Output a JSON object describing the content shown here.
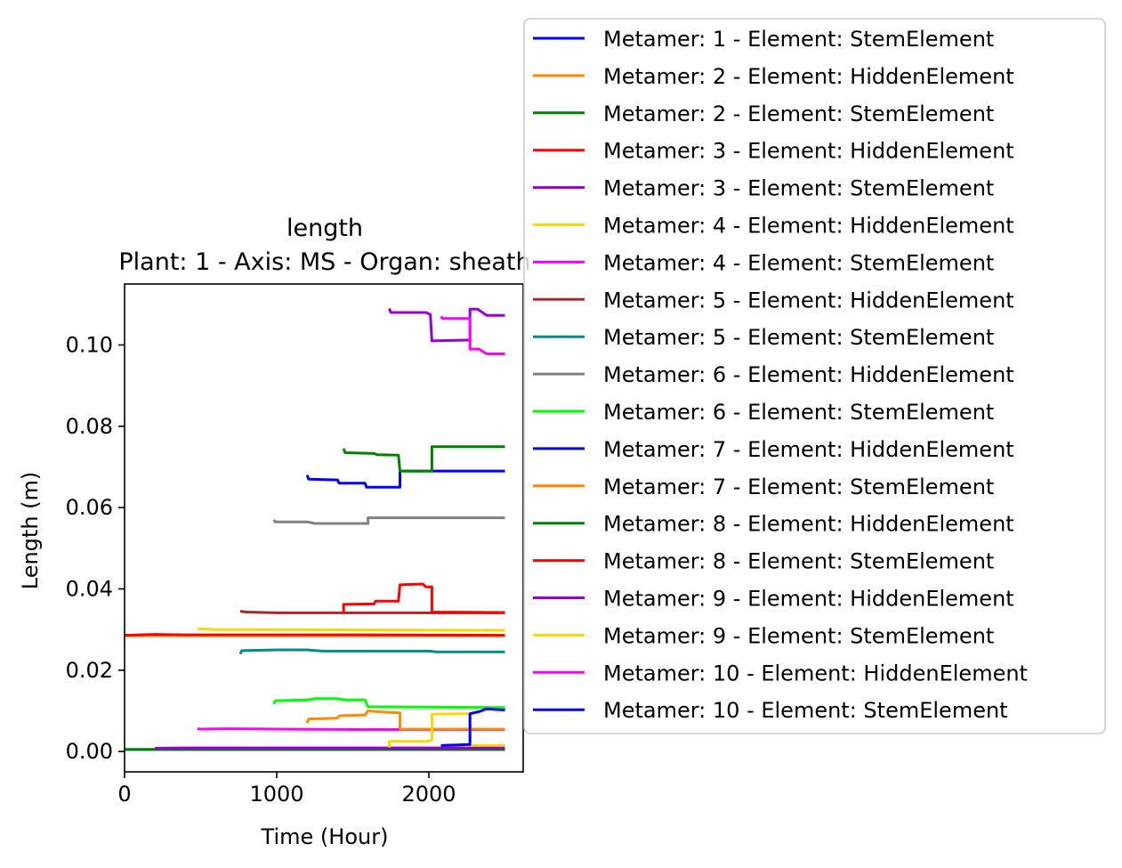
{
  "chart_data": {
    "type": "line",
    "title": "length",
    "subtitle": "Plant: 1 - Axis: MS - Organ: sheath",
    "xlabel": "Time (Hour)",
    "ylabel": "Length (m)",
    "xlim": [
      0,
      2620
    ],
    "ylim": [
      -0.005,
      0.115
    ],
    "xticks": [
      0,
      1000,
      2000
    ],
    "yticks": [
      0.0,
      0.02,
      0.04,
      0.06,
      0.08,
      0.1
    ],
    "ytick_labels": [
      "0.00",
      "0.02",
      "0.04",
      "0.06",
      "0.08",
      "0.10"
    ],
    "xtick_labels": [
      "0",
      "1000",
      "2000"
    ],
    "grid": false,
    "legend_position": "right-outside-top",
    "series": [
      {
        "name": "Metamer: 1 - Element: StemElement",
        "color": "#0000ff",
        "points": [
          [
            0,
            0.0005
          ],
          [
            2500,
            0.0005
          ]
        ]
      },
      {
        "name": "Metamer: 2 - Element: HiddenElement",
        "color": "#ff8c00",
        "points": [
          [
            0,
            0.0285
          ],
          [
            2500,
            0.0285
          ]
        ]
      },
      {
        "name": "Metamer: 2 - Element: StemElement",
        "color": "#008000",
        "points": [
          [
            0,
            0.0005
          ],
          [
            2500,
            0.0005
          ]
        ]
      },
      {
        "name": "Metamer: 3 - Element: HiddenElement",
        "color": "#ff0000",
        "points": [
          [
            0,
            0.0286
          ],
          [
            200,
            0.0288
          ],
          [
            400,
            0.0287
          ],
          [
            800,
            0.0287
          ],
          [
            1600,
            0.0287
          ],
          [
            2500,
            0.0286
          ]
        ]
      },
      {
        "name": "Metamer: 3 - Element: StemElement",
        "color": "#9400d3",
        "points": [
          [
            200,
            0.0008
          ],
          [
            400,
            0.0009
          ],
          [
            1000,
            0.0009
          ],
          [
            2500,
            0.0009
          ]
        ]
      },
      {
        "name": "Metamer: 4 - Element: HiddenElement",
        "color": "#ffd700",
        "points": [
          [
            480,
            0.0302
          ],
          [
            600,
            0.03
          ],
          [
            1000,
            0.03
          ],
          [
            1600,
            0.0299
          ],
          [
            2500,
            0.0298
          ]
        ]
      },
      {
        "name": "Metamer: 4 - Element: StemElement",
        "color": "#ff00ff",
        "points": [
          [
            480,
            0.0056
          ],
          [
            500,
            0.0055
          ],
          [
            700,
            0.0056
          ],
          [
            1000,
            0.0055
          ],
          [
            1600,
            0.0054
          ],
          [
            2500,
            0.0054
          ]
        ]
      },
      {
        "name": "Metamer: 5 - Element: HiddenElement",
        "color": "#a52a2a",
        "points": [
          [
            760,
            0.0345
          ],
          [
            800,
            0.0343
          ],
          [
            1000,
            0.0341
          ],
          [
            1600,
            0.0341
          ],
          [
            2500,
            0.0341
          ]
        ]
      },
      {
        "name": "Metamer: 5 - Element: StemElement",
        "color": "#008b8b",
        "points": [
          [
            760,
            0.024
          ],
          [
            770,
            0.0248
          ],
          [
            1000,
            0.025
          ],
          [
            1200,
            0.025
          ],
          [
            1300,
            0.0247
          ],
          [
            2000,
            0.0247
          ],
          [
            2050,
            0.0245
          ],
          [
            2500,
            0.0245
          ]
        ]
      },
      {
        "name": "Metamer: 6 - Element: HiddenElement",
        "color": "#808080",
        "points": [
          [
            980,
            0.057
          ],
          [
            990,
            0.0565
          ],
          [
            1200,
            0.0565
          ],
          [
            1250,
            0.0561
          ],
          [
            1600,
            0.0561
          ],
          [
            1600,
            0.0575
          ],
          [
            2500,
            0.0575
          ]
        ]
      },
      {
        "name": "Metamer: 6 - Element: StemElement",
        "color": "#00ff00",
        "points": [
          [
            980,
            0.0117
          ],
          [
            990,
            0.0125
          ],
          [
            1200,
            0.0127
          ],
          [
            1250,
            0.013
          ],
          [
            1400,
            0.013
          ],
          [
            1450,
            0.0127
          ],
          [
            1580,
            0.0127
          ],
          [
            1600,
            0.011
          ],
          [
            2500,
            0.0108
          ]
        ]
      },
      {
        "name": "Metamer: 7 - Element: HiddenElement",
        "color": "#0000ff",
        "points": [
          [
            1200,
            0.068
          ],
          [
            1210,
            0.067
          ],
          [
            1400,
            0.0668
          ],
          [
            1410,
            0.066
          ],
          [
            1580,
            0.066
          ],
          [
            1590,
            0.065
          ],
          [
            1810,
            0.065
          ],
          [
            1810,
            0.069
          ],
          [
            2500,
            0.069
          ]
        ]
      },
      {
        "name": "Metamer: 7 - Element: StemElement",
        "color": "#ff8c00",
        "points": [
          [
            1200,
            0.007
          ],
          [
            1210,
            0.008
          ],
          [
            1400,
            0.0082
          ],
          [
            1410,
            0.0088
          ],
          [
            1580,
            0.009
          ],
          [
            1600,
            0.01
          ],
          [
            1700,
            0.0097
          ],
          [
            1810,
            0.0095
          ],
          [
            1810,
            0.0055
          ],
          [
            2500,
            0.0055
          ]
        ]
      },
      {
        "name": "Metamer: 8 - Element: HiddenElement",
        "color": "#008000",
        "points": [
          [
            1440,
            0.0745
          ],
          [
            1450,
            0.0735
          ],
          [
            1640,
            0.0733
          ],
          [
            1660,
            0.073
          ],
          [
            1800,
            0.0729
          ],
          [
            1810,
            0.069
          ],
          [
            2020,
            0.069
          ],
          [
            2020,
            0.075
          ],
          [
            2500,
            0.075
          ]
        ]
      },
      {
        "name": "Metamer: 8 - Element: StemElement",
        "color": "#ff0000",
        "points": [
          [
            1440,
            0.034
          ],
          [
            1440,
            0.0362
          ],
          [
            1640,
            0.0363
          ],
          [
            1650,
            0.037
          ],
          [
            1800,
            0.037
          ],
          [
            1810,
            0.041
          ],
          [
            1960,
            0.0412
          ],
          [
            1980,
            0.0405
          ],
          [
            2020,
            0.0405
          ],
          [
            2020,
            0.0343
          ],
          [
            2500,
            0.0342
          ]
        ]
      },
      {
        "name": "Metamer: 9 - Element: HiddenElement",
        "color": "#9400d3",
        "points": [
          [
            1740,
            0.109
          ],
          [
            1750,
            0.108
          ],
          [
            1980,
            0.108
          ],
          [
            2010,
            0.1075
          ],
          [
            2020,
            0.101
          ],
          [
            2250,
            0.1012
          ],
          [
            2270,
            0.1012
          ],
          [
            2270,
            0.1088
          ],
          [
            2320,
            0.1088
          ],
          [
            2380,
            0.1073
          ],
          [
            2500,
            0.1073
          ]
        ]
      },
      {
        "name": "Metamer: 9 - Element: StemElement",
        "color": "#ffd700",
        "points": [
          [
            1740,
            0.001
          ],
          [
            1740,
            0.0025
          ],
          [
            1980,
            0.0025
          ],
          [
            2020,
            0.0028
          ],
          [
            2020,
            0.0092
          ],
          [
            2250,
            0.0093
          ],
          [
            2270,
            0.0093
          ],
          [
            2270,
            0.0015
          ],
          [
            2500,
            0.0015
          ]
        ]
      },
      {
        "name": "Metamer: 10 - Element: HiddenElement",
        "color": "#ff00ff",
        "points": [
          [
            2080,
            0.107
          ],
          [
            2090,
            0.1065
          ],
          [
            2250,
            0.1065
          ],
          [
            2270,
            0.1065
          ],
          [
            2270,
            0.099
          ],
          [
            2330,
            0.099
          ],
          [
            2380,
            0.0978
          ],
          [
            2500,
            0.0978
          ]
        ]
      },
      {
        "name": "Metamer: 10 - Element: StemElement",
        "color": "#0000ff",
        "points": [
          [
            2080,
            0.0013
          ],
          [
            2090,
            0.0015
          ],
          [
            2250,
            0.0017
          ],
          [
            2270,
            0.0017
          ],
          [
            2270,
            0.0093
          ],
          [
            2330,
            0.0098
          ],
          [
            2380,
            0.0105
          ],
          [
            2500,
            0.0102
          ]
        ]
      }
    ]
  }
}
